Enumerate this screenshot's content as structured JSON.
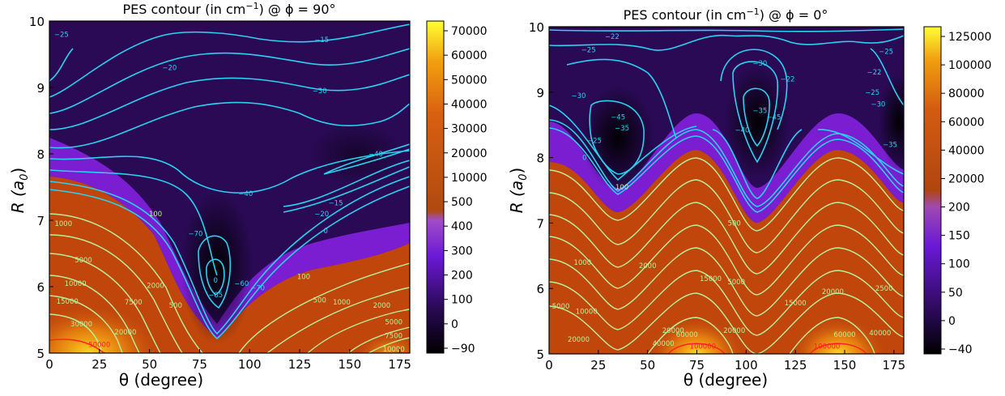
{
  "colors": {
    "cmap": [
      "#000000",
      "#2b0a58",
      "#6a19d6",
      "#a85c2c",
      "#c94a0c",
      "#ec8c10",
      "#ffff33"
    ],
    "contour_cool": "#2ad1f0",
    "contour_warm": "#b8f09a",
    "contour_hot": "#ff2020"
  },
  "chart_data": [
    {
      "type": "heatmap",
      "title_pre": "PES contour (in cm",
      "title_sup": "−1",
      "title_post": ") @ ϕ = 90°",
      "xlabel": "θ (degree)",
      "ylabel_main": "R (a",
      "ylabel_sub": "0",
      "ylabel_close": ")",
      "xlim": [
        0,
        180
      ],
      "ylim": [
        5,
        10
      ],
      "xticks": [
        "0",
        "25",
        "50",
        "75",
        "100",
        "125",
        "150",
        "175"
      ],
      "yticks": [
        "5",
        "6",
        "7",
        "8",
        "9",
        "10"
      ],
      "colorbar_ticks": [
        "−90",
        "0",
        "100",
        "200",
        "300",
        "400",
        "500",
        "10000",
        "20000",
        "30000",
        "40000",
        "50000",
        "60000",
        "70000"
      ],
      "contour_labels": [
        {
          "text": "−25",
          "x": 6,
          "y": 9.8
        },
        {
          "text": "−15",
          "x": 136,
          "y": 9.72
        },
        {
          "text": "−20",
          "x": 60,
          "y": 9.3
        },
        {
          "text": "−30",
          "x": 135,
          "y": 8.95
        },
        {
          "text": "−40",
          "x": 163,
          "y": 8.0
        },
        {
          "text": "−40",
          "x": 98,
          "y": 7.4
        },
        {
          "text": "−20",
          "x": 136,
          "y": 7.1
        },
        {
          "text": "−15",
          "x": 143,
          "y": 7.26
        },
        {
          "text": "0",
          "x": 138,
          "y": 6.84
        },
        {
          "text": "100",
          "x": 53,
          "y": 7.1
        },
        {
          "text": "100",
          "x": 127,
          "y": 6.15
        },
        {
          "text": "1000",
          "x": 7,
          "y": 6.95
        },
        {
          "text": "−70",
          "x": 73,
          "y": 6.8
        },
        {
          "text": "−60",
          "x": 96,
          "y": 6.05
        },
        {
          "text": "−70",
          "x": 104,
          "y": 5.98
        },
        {
          "text": "−85",
          "x": 83,
          "y": 5.88
        },
        {
          "text": "0",
          "x": 83,
          "y": 6.1
        },
        {
          "text": "5000",
          "x": 17,
          "y": 6.4
        },
        {
          "text": "10000",
          "x": 13,
          "y": 6.05
        },
        {
          "text": "15000",
          "x": 9,
          "y": 5.78
        },
        {
          "text": "2000",
          "x": 53,
          "y": 6.02
        },
        {
          "text": "7500",
          "x": 42,
          "y": 5.77
        },
        {
          "text": "500",
          "x": 63,
          "y": 5.72
        },
        {
          "text": "500",
          "x": 135,
          "y": 5.8
        },
        {
          "text": "1000",
          "x": 146,
          "y": 5.77
        },
        {
          "text": "2000",
          "x": 166,
          "y": 5.72
        },
        {
          "text": "30000",
          "x": 16,
          "y": 5.44
        },
        {
          "text": "20000",
          "x": 38,
          "y": 5.32
        },
        {
          "text": "50000",
          "x": 25,
          "y": 5.13
        },
        {
          "text": "5000",
          "x": 172,
          "y": 5.47
        },
        {
          "text": "7500",
          "x": 172,
          "y": 5.26
        },
        {
          "text": "10000",
          "x": 172,
          "y": 5.06
        }
      ]
    },
    {
      "type": "heatmap",
      "title_pre": "PES contour (in cm",
      "title_sup": "−1",
      "title_post": ") @ ϕ = 0°",
      "xlabel": "θ (degree)",
      "ylabel_main": "R (a",
      "ylabel_sub": "0",
      "ylabel_close": ")",
      "xlim": [
        0,
        180
      ],
      "ylim": [
        5,
        10
      ],
      "xticks": [
        "0",
        "25",
        "50",
        "75",
        "100",
        "125",
        "150",
        "175"
      ],
      "yticks": [
        "5",
        "6",
        "7",
        "8",
        "9",
        "10"
      ],
      "colorbar_ticks": [
        "−40",
        "0",
        "50",
        "100",
        "150",
        "200",
        "20000",
        "40000",
        "60000",
        "80000",
        "100000",
        "125000"
      ],
      "contour_labels": [
        {
          "text": "−22",
          "x": 32,
          "y": 9.85
        },
        {
          "text": "−25",
          "x": 20,
          "y": 9.65
        },
        {
          "text": "−30",
          "x": 107,
          "y": 9.44
        },
        {
          "text": "−22",
          "x": 121,
          "y": 9.2
        },
        {
          "text": "−25",
          "x": 171,
          "y": 9.62
        },
        {
          "text": "−22",
          "x": 165,
          "y": 9.31
        },
        {
          "text": "−25",
          "x": 164,
          "y": 9.0
        },
        {
          "text": "−30",
          "x": 15,
          "y": 8.95
        },
        {
          "text": "−45",
          "x": 35,
          "y": 8.62
        },
        {
          "text": "−35",
          "x": 107,
          "y": 8.72
        },
        {
          "text": "−45",
          "x": 114,
          "y": 8.62
        },
        {
          "text": "−40",
          "x": 98,
          "y": 8.42
        },
        {
          "text": "−35",
          "x": 37,
          "y": 8.45
        },
        {
          "text": "−25",
          "x": 23,
          "y": 8.26
        },
        {
          "text": "−30",
          "x": 167,
          "y": 8.82
        },
        {
          "text": "−35",
          "x": 173,
          "y": 8.2
        },
        {
          "text": "0",
          "x": 18,
          "y": 8.0
        },
        {
          "text": "100",
          "x": 37,
          "y": 7.55
        },
        {
          "text": "500",
          "x": 94,
          "y": 7.0
        },
        {
          "text": "1000",
          "x": 17,
          "y": 6.4
        },
        {
          "text": "2000",
          "x": 50,
          "y": 6.35
        },
        {
          "text": "15000",
          "x": 82,
          "y": 6.15
        },
        {
          "text": "5000",
          "x": 95,
          "y": 6.1
        },
        {
          "text": "2500",
          "x": 170,
          "y": 6.0
        },
        {
          "text": "20000",
          "x": 144,
          "y": 5.95
        },
        {
          "text": "15000",
          "x": 125,
          "y": 5.78
        },
        {
          "text": "5000",
          "x": 6,
          "y": 5.73
        },
        {
          "text": "10000",
          "x": 19,
          "y": 5.65
        },
        {
          "text": "20000",
          "x": 15,
          "y": 5.22
        },
        {
          "text": "20000",
          "x": 63,
          "y": 5.36
        },
        {
          "text": "40000",
          "x": 58,
          "y": 5.16
        },
        {
          "text": "60000",
          "x": 70,
          "y": 5.3
        },
        {
          "text": "20000",
          "x": 94,
          "y": 5.36
        },
        {
          "text": "40000",
          "x": 168,
          "y": 5.32
        },
        {
          "text": "60000",
          "x": 150,
          "y": 5.3
        },
        {
          "text": "100000",
          "x": 78,
          "y": 5.12
        },
        {
          "text": "100000",
          "x": 141,
          "y": 5.12
        }
      ]
    }
  ]
}
